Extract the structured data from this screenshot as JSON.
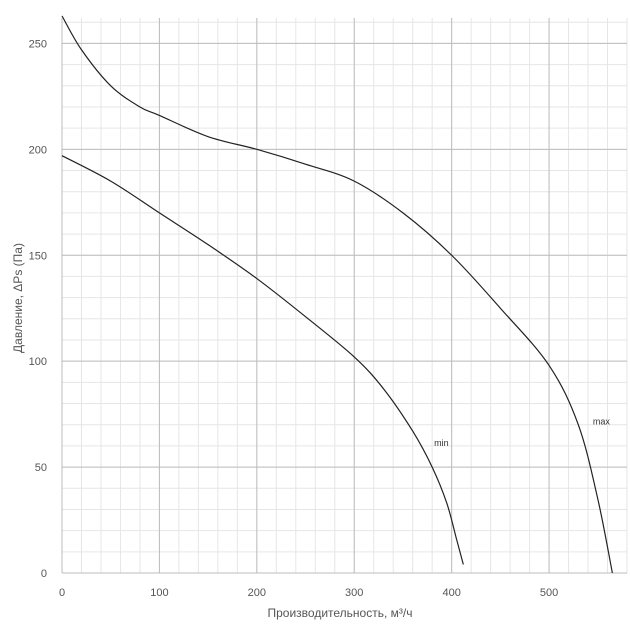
{
  "chart_data": {
    "type": "line",
    "title": "",
    "xlabel": "Производительность, м³/ч",
    "ylabel": "Давление, ΔPs (Па)",
    "xlim": [
      0,
      580
    ],
    "ylim": [
      0,
      262
    ],
    "x_ticks": [
      0,
      100,
      200,
      300,
      400,
      500
    ],
    "y_ticks": [
      0,
      50,
      100,
      150,
      200,
      250
    ],
    "grid": true,
    "series": [
      {
        "name": "max",
        "color": "#222222",
        "x": [
          0,
          20,
          50,
          80,
          100,
          150,
          200,
          250,
          300,
          350,
          400,
          450,
          500,
          530,
          550,
          565
        ],
        "y": [
          263,
          247,
          230,
          220,
          216,
          206,
          200,
          193,
          185,
          170,
          150,
          125,
          98,
          70,
          35,
          0
        ]
      },
      {
        "name": "min",
        "color": "#222222",
        "x": [
          0,
          50,
          100,
          150,
          200,
          250,
          300,
          330,
          360,
          380,
          395,
          405,
          412
        ],
        "y": [
          197,
          185,
          170,
          155,
          139,
          121,
          102,
          87,
          67,
          50,
          33,
          16,
          4
        ]
      }
    ],
    "annotations": [
      {
        "text": "max",
        "x": 545,
        "y": 70
      },
      {
        "text": "min",
        "x": 382,
        "y": 60
      }
    ]
  }
}
